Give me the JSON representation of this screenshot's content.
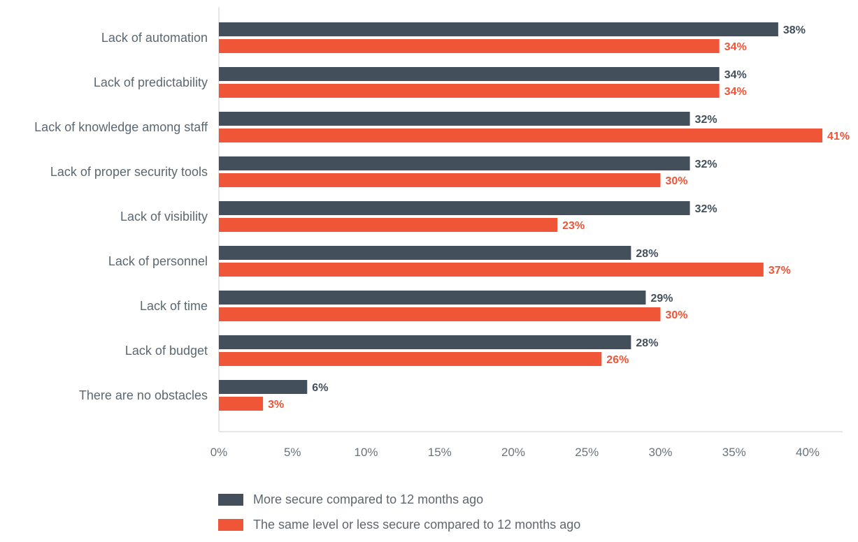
{
  "chart_data": {
    "type": "bar",
    "orientation": "horizontal",
    "categories": [
      "Lack of automation",
      "Lack of predictability",
      "Lack of knowledge among staff",
      "Lack of proper security tools",
      "Lack of visibility",
      "Lack of personnel",
      "Lack of time",
      "Lack of budget",
      "There are no obstacles"
    ],
    "series": [
      {
        "name": "More secure compared to 12 months ago",
        "color": "#434f5b",
        "values": [
          38,
          34,
          32,
          32,
          32,
          28,
          29,
          28,
          6
        ],
        "labels": [
          "38%",
          "34%",
          "32%",
          "32%",
          "32%",
          "28%",
          "29%",
          "28%",
          "6%"
        ]
      },
      {
        "name": "The same level or less secure compared to 12 months ago",
        "color": "#f05537",
        "values": [
          34,
          34,
          41,
          30,
          23,
          37,
          30,
          26,
          3
        ],
        "labels": [
          "34%",
          "34%",
          "41%",
          "30%",
          "23%",
          "37%",
          "30%",
          "26%",
          "3%"
        ]
      }
    ],
    "xlim": [
      0,
      42
    ],
    "ticks": [
      0,
      5,
      10,
      15,
      20,
      25,
      30,
      35,
      40
    ],
    "tick_labels": [
      "0%",
      "5%",
      "10%",
      "15%",
      "20%",
      "25%",
      "30%",
      "35%",
      "40%"
    ],
    "grid": false,
    "legend_position": "bottom-left"
  }
}
